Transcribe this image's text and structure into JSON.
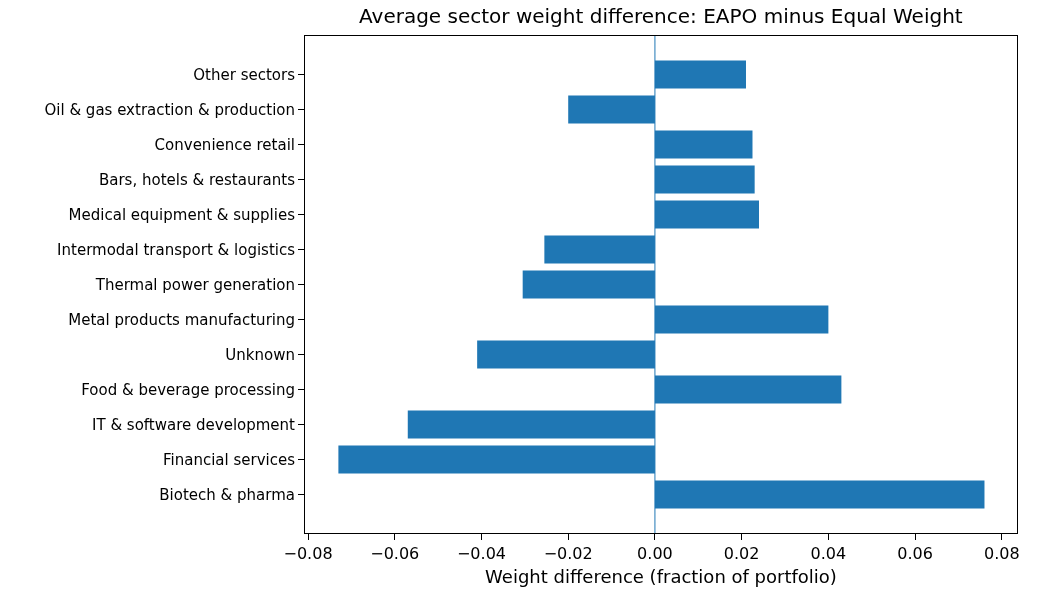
{
  "chart_data": {
    "type": "bar",
    "orientation": "horizontal",
    "title": "Average sector weight difference: EAPO minus Equal Weight",
    "xlabel": "Weight difference (fraction of portfolio)",
    "categories": [
      "Other sectors",
      "Oil & gas extraction & production",
      "Convenience retail",
      "Bars, hotels & restaurants",
      "Medical equipment & supplies",
      "Intermodal transport & logistics",
      "Thermal power generation",
      "Metal products manufacturing",
      "Unknown",
      "Food & beverage processing",
      "IT & software development",
      "Financial services",
      "Biotech & pharma"
    ],
    "values": [
      0.021,
      -0.02,
      0.0225,
      0.023,
      0.024,
      -0.0255,
      -0.0305,
      0.04,
      -0.041,
      0.043,
      -0.057,
      -0.073,
      0.076
    ],
    "color": "#1f77b4",
    "xlim": [
      -0.0807,
      0.0835
    ],
    "xticks": [
      {
        "value": -0.08,
        "label": "−0.08"
      },
      {
        "value": -0.06,
        "label": "−0.06"
      },
      {
        "value": -0.04,
        "label": "−0.04"
      },
      {
        "value": -0.02,
        "label": "−0.02"
      },
      {
        "value": 0,
        "label": "0.00"
      },
      {
        "value": 0.02,
        "label": "0.02"
      },
      {
        "value": 0.04,
        "label": "0.04"
      },
      {
        "value": 0.06,
        "label": "0.06"
      },
      {
        "value": 0.08,
        "label": "0.08"
      }
    ],
    "ref_lines": [
      {
        "axis": "x",
        "value": 0,
        "color": "#1f77b4"
      }
    ],
    "grid": false
  }
}
